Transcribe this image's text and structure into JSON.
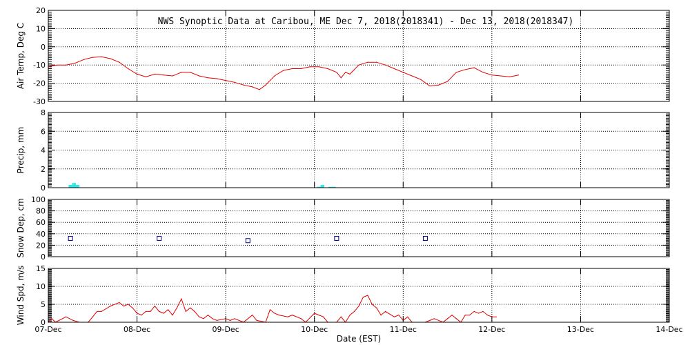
{
  "title": "NWS Synoptic Data at Caribou, ME   Dec  7, 2018(2018341) - Dec 13, 2018(2018347)",
  "colors": {
    "temp": "#e00000",
    "precip": "#33e6e6",
    "snow": "#000080",
    "wind": "#e00000",
    "grid": "#000000"
  },
  "chart_data": [
    {
      "type": "line",
      "id": "temp",
      "ylabel": "Air Temp, Deg C",
      "ylim": [
        -30,
        20
      ],
      "yticks": [
        "20",
        "10",
        "0",
        "-10",
        "-20",
        "-30"
      ],
      "ytick_values": [
        20,
        10,
        0,
        -10,
        -20,
        -30
      ],
      "grid": true,
      "series": [
        {
          "values": [
            [
              7.0,
              -11
            ],
            [
              7.1,
              -10
            ],
            [
              7.2,
              -10
            ],
            [
              7.3,
              -9
            ],
            [
              7.4,
              -7
            ],
            [
              7.5,
              -5.8
            ],
            [
              7.6,
              -5.5
            ],
            [
              7.7,
              -6.5
            ],
            [
              7.8,
              -8.5
            ],
            [
              7.9,
              -12
            ],
            [
              8.0,
              -15
            ],
            [
              8.1,
              -16.5
            ],
            [
              8.2,
              -15
            ],
            [
              8.3,
              -15.5
            ],
            [
              8.4,
              -16
            ],
            [
              8.5,
              -14
            ],
            [
              8.6,
              -14
            ],
            [
              8.7,
              -16
            ],
            [
              8.8,
              -17
            ],
            [
              8.9,
              -17.5
            ],
            [
              9.0,
              -18.5
            ],
            [
              9.1,
              -19.5
            ],
            [
              9.2,
              -21
            ],
            [
              9.3,
              -22
            ],
            [
              9.38,
              -23.5
            ],
            [
              9.45,
              -21
            ],
            [
              9.55,
              -16
            ],
            [
              9.65,
              -13
            ],
            [
              9.75,
              -12
            ],
            [
              9.85,
              -12
            ],
            [
              9.95,
              -11
            ],
            [
              10.05,
              -11
            ],
            [
              10.15,
              -12
            ],
            [
              10.25,
              -14
            ],
            [
              10.3,
              -17
            ],
            [
              10.35,
              -14
            ],
            [
              10.4,
              -15
            ],
            [
              10.5,
              -10
            ],
            [
              10.6,
              -8.5
            ],
            [
              10.7,
              -8.5
            ],
            [
              10.8,
              -10
            ],
            [
              10.9,
              -12
            ],
            [
              11.0,
              -14
            ],
            [
              11.1,
              -16
            ],
            [
              11.2,
              -18
            ],
            [
              11.3,
              -21.5
            ],
            [
              11.4,
              -21
            ],
            [
              11.5,
              -19
            ],
            [
              11.6,
              -14
            ],
            [
              11.7,
              -12.5
            ],
            [
              11.8,
              -11.5
            ],
            [
              11.9,
              -14
            ],
            [
              12.0,
              -15.5
            ],
            [
              12.1,
              -16
            ],
            [
              12.2,
              -16.5
            ],
            [
              12.3,
              -15.5
            ]
          ]
        }
      ]
    },
    {
      "type": "bar",
      "id": "precip",
      "ylabel": "Precip, mm",
      "ylim": [
        0,
        8
      ],
      "yticks": [
        "8",
        "6",
        "4",
        "2",
        "0"
      ],
      "ytick_values": [
        8,
        6,
        4,
        2,
        0
      ],
      "grid": true,
      "bar_width_days": 0.042,
      "series": [
        {
          "values": [
            [
              7.25,
              0.3
            ],
            [
              7.29,
              0.5
            ],
            [
              7.33,
              0.3
            ],
            [
              10.05,
              0.1
            ],
            [
              10.09,
              0.3
            ],
            [
              10.18,
              0.1
            ],
            [
              10.22,
              0.1
            ]
          ]
        }
      ]
    },
    {
      "type": "scatter",
      "id": "snow",
      "ylabel": "Snow Dep, cm",
      "ylim": [
        0,
        100
      ],
      "yticks": [
        "100",
        "80",
        "60",
        "40",
        "20",
        "0"
      ],
      "ytick_values": [
        100,
        80,
        60,
        40,
        20,
        0
      ],
      "grid": true,
      "series": [
        {
          "values": [
            [
              7.25,
              32
            ],
            [
              8.25,
              32
            ],
            [
              9.25,
              28
            ],
            [
              10.25,
              32
            ],
            [
              11.25,
              32
            ]
          ]
        }
      ]
    },
    {
      "type": "line",
      "id": "wind",
      "ylabel": "Wind Spd, m/s",
      "xlabel": "Date (EST)",
      "ylim": [
        0,
        15
      ],
      "yticks": [
        "15",
        "10",
        "5",
        "0"
      ],
      "ytick_values": [
        15,
        10,
        5,
        0
      ],
      "grid": true,
      "x_ticks": [
        "07-Dec",
        "08-Dec",
        "09-Dec",
        "10-Dec",
        "11-Dec",
        "12-Dec",
        "13-Dec",
        "14-Dec"
      ],
      "x_tick_values": [
        7,
        8,
        9,
        10,
        11,
        12,
        13,
        14
      ],
      "series": [
        {
          "values": [
            [
              7.0,
              0
            ],
            [
              7.04,
              1
            ],
            [
              7.08,
              0
            ],
            [
              7.2,
              1.5
            ],
            [
              7.28,
              0.5
            ],
            [
              7.35,
              0
            ],
            [
              7.45,
              0
            ],
            [
              7.5,
              1.5
            ],
            [
              7.55,
              3
            ],
            [
              7.6,
              3
            ],
            [
              7.7,
              4.5
            ],
            [
              7.8,
              5.5
            ],
            [
              7.85,
              4.5
            ],
            [
              7.9,
              5
            ],
            [
              7.95,
              4
            ],
            [
              8.0,
              2.5
            ],
            [
              8.05,
              2
            ],
            [
              8.1,
              3
            ],
            [
              8.15,
              3
            ],
            [
              8.2,
              4.5
            ],
            [
              8.25,
              3
            ],
            [
              8.3,
              2.5
            ],
            [
              8.35,
              3.5
            ],
            [
              8.4,
              2
            ],
            [
              8.45,
              4
            ],
            [
              8.5,
              6.5
            ],
            [
              8.55,
              3
            ],
            [
              8.6,
              4
            ],
            [
              8.65,
              3
            ],
            [
              8.7,
              1.5
            ],
            [
              8.75,
              1
            ],
            [
              8.8,
              2
            ],
            [
              8.85,
              1
            ],
            [
              8.9,
              0.5
            ],
            [
              9.0,
              1
            ],
            [
              9.05,
              0.5
            ],
            [
              9.1,
              1
            ],
            [
              9.2,
              0
            ],
            [
              9.25,
              1
            ],
            [
              9.3,
              2
            ],
            [
              9.35,
              0.5
            ],
            [
              9.45,
              0
            ],
            [
              9.5,
              3.5
            ],
            [
              9.55,
              2.5
            ],
            [
              9.6,
              2
            ],
            [
              9.7,
              1.5
            ],
            [
              9.75,
              2
            ],
            [
              9.85,
              1
            ],
            [
              9.9,
              0
            ],
            [
              10.0,
              2.5
            ],
            [
              10.05,
              2
            ],
            [
              10.1,
              1.5
            ],
            [
              10.15,
              0
            ],
            [
              10.25,
              0
            ],
            [
              10.3,
              1.5
            ],
            [
              10.35,
              0
            ],
            [
              10.4,
              2
            ],
            [
              10.45,
              3
            ],
            [
              10.5,
              4.5
            ],
            [
              10.55,
              7
            ],
            [
              10.6,
              7.5
            ],
            [
              10.65,
              5
            ],
            [
              10.7,
              4
            ],
            [
              10.75,
              2
            ],
            [
              10.8,
              3
            ],
            [
              10.9,
              1.5
            ],
            [
              10.95,
              2
            ],
            [
              11.0,
              0.5
            ],
            [
              11.05,
              1.5
            ],
            [
              11.1,
              0
            ],
            [
              11.25,
              0
            ],
            [
              11.3,
              0.5
            ],
            [
              11.35,
              1
            ],
            [
              11.45,
              0
            ],
            [
              11.5,
              1
            ],
            [
              11.55,
              2
            ],
            [
              11.6,
              1
            ],
            [
              11.65,
              0
            ],
            [
              11.7,
              2
            ],
            [
              11.75,
              2
            ],
            [
              11.8,
              3
            ],
            [
              11.85,
              2.5
            ],
            [
              11.9,
              3
            ],
            [
              11.95,
              2
            ],
            [
              12.0,
              1.5
            ],
            [
              12.05,
              1.5
            ]
          ]
        }
      ]
    }
  ]
}
